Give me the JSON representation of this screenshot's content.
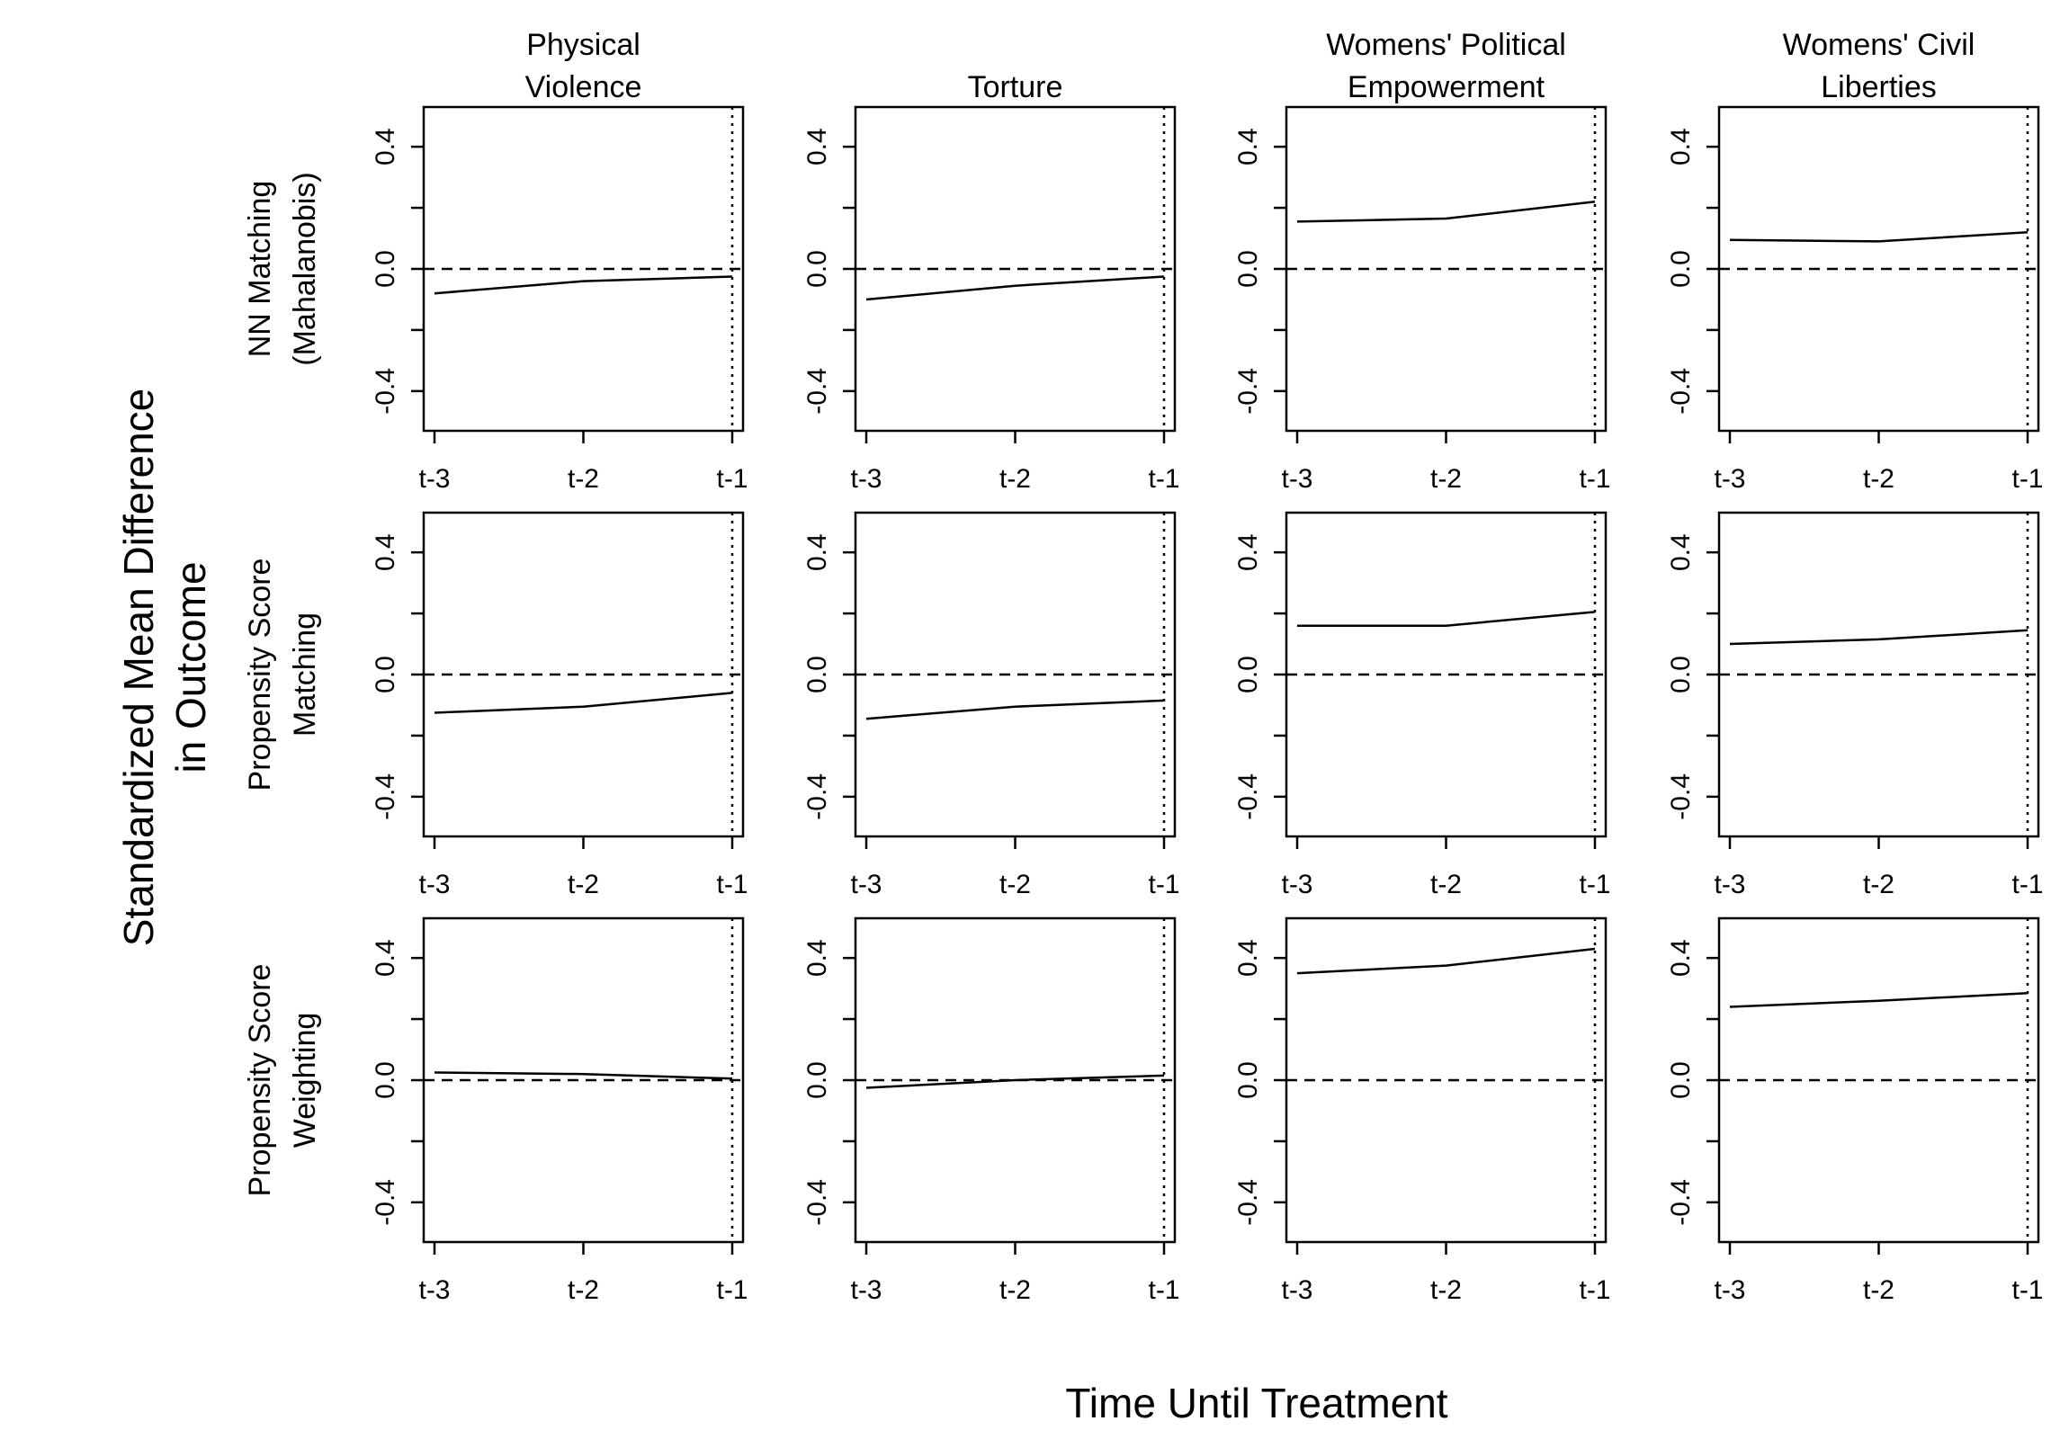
{
  "xlabel": "Time Until Treatment",
  "ylabel_lines": [
    "Standardized Mean Difference",
    "in Outcome"
  ],
  "columns": [
    {
      "title_lines": [
        "Physical",
        "Violence"
      ]
    },
    {
      "title_lines": [
        "Torture"
      ]
    },
    {
      "title_lines": [
        "Womens' Political",
        "Empowerment"
      ]
    },
    {
      "title_lines": [
        "Womens' Civil",
        "Liberties"
      ]
    }
  ],
  "rows": [
    {
      "label_lines": [
        "NN Matching",
        "(Mahalanobis)"
      ]
    },
    {
      "label_lines": [
        "Propensity Score",
        "Matching"
      ]
    },
    {
      "label_lines": [
        "Propensity Score",
        "Weighting"
      ]
    }
  ],
  "chart_data": {
    "type": "line",
    "x_categories": [
      "t-3",
      "t-2",
      "t-1"
    ],
    "y_ticks": [
      0.4,
      0.0,
      -0.4
    ],
    "y_tick_labels": [
      "0.4",
      "0.0",
      "-0.4"
    ],
    "ylim": [
      -0.53,
      0.53
    ],
    "reference_line_y": 0.0,
    "treatment_marker_x": "t-1",
    "panels": [
      {
        "row": 0,
        "col": 0,
        "values": [
          -0.08,
          -0.04,
          -0.025
        ]
      },
      {
        "row": 0,
        "col": 1,
        "values": [
          -0.1,
          -0.055,
          -0.025
        ]
      },
      {
        "row": 0,
        "col": 2,
        "values": [
          0.155,
          0.165,
          0.22
        ]
      },
      {
        "row": 0,
        "col": 3,
        "values": [
          0.095,
          0.09,
          0.12
        ]
      },
      {
        "row": 1,
        "col": 0,
        "values": [
          -0.125,
          -0.105,
          -0.06
        ]
      },
      {
        "row": 1,
        "col": 1,
        "values": [
          -0.145,
          -0.105,
          -0.085
        ]
      },
      {
        "row": 1,
        "col": 2,
        "values": [
          0.16,
          0.16,
          0.205
        ]
      },
      {
        "row": 1,
        "col": 3,
        "values": [
          0.1,
          0.115,
          0.145
        ]
      },
      {
        "row": 2,
        "col": 0,
        "values": [
          0.025,
          0.02,
          0.005
        ]
      },
      {
        "row": 2,
        "col": 1,
        "values": [
          -0.025,
          0.0,
          0.015
        ]
      },
      {
        "row": 2,
        "col": 2,
        "values": [
          0.35,
          0.375,
          0.43
        ]
      },
      {
        "row": 2,
        "col": 3,
        "values": [
          0.24,
          0.26,
          0.285
        ]
      }
    ]
  }
}
